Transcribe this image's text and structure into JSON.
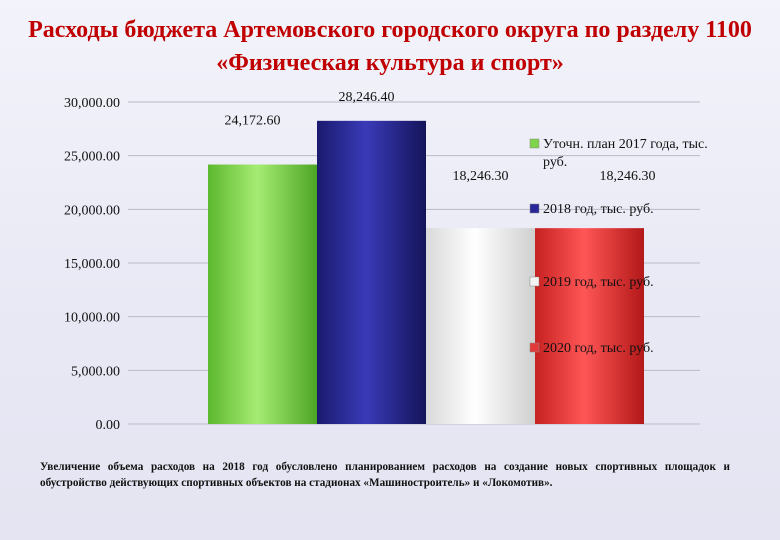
{
  "title": "Расходы бюджета Артемовского городского округа по разделу 1100 «Физическая культура и спорт»",
  "caption": "Увеличение объема расходов на 2018 год обусловлено планированием расходов на создание новых спортивных площадок и обустройство действующих спортивных объектов на стадионах «Машиностроитель» и «Локомотив».",
  "chart_data": {
    "type": "bar",
    "ylim": [
      0,
      30000
    ],
    "yticks": [
      "0.00",
      "5,000.00",
      "10,000.00",
      "15,000.00",
      "20,000.00",
      "25,000.00",
      "30,000.00"
    ],
    "ytick_values": [
      0,
      5000,
      10000,
      15000,
      20000,
      25000,
      30000
    ],
    "grid": true,
    "legend_position": "right",
    "series": [
      {
        "name": "Уточн. план 2017 года, тыс. руб.",
        "value": 24172.6,
        "label": "24,172.60",
        "color": "#7dd34a"
      },
      {
        "name": "2018 год, тыс. руб.",
        "value": 28246.4,
        "label": "28,246.40",
        "color": "#27279a"
      },
      {
        "name": "2019 год, тыс. руб.",
        "value": 18246.3,
        "label": "18,246.30",
        "color": "#f4f4f4"
      },
      {
        "name": "2020 год, тыс. руб.",
        "value": 18246.3,
        "label": "18,246.30",
        "color": "#e23a3a"
      }
    ]
  }
}
